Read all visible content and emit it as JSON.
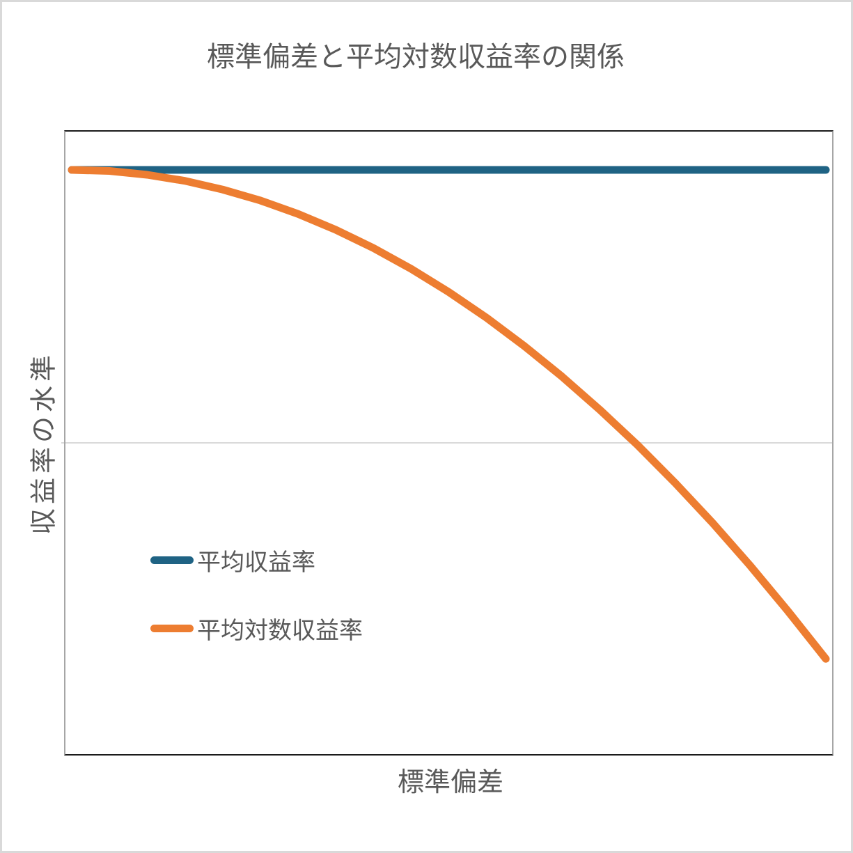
{
  "title": "標準偏差と平均対数収益率の関係",
  "axes": {
    "x_title": "標準偏差",
    "y_title": "収益率の水準"
  },
  "legend": {
    "items": [
      {
        "label": "平均収益率",
        "color": "#1F6384"
      },
      {
        "label": "平均対数収益率",
        "color": "#ED7D31"
      }
    ]
  },
  "colors": {
    "text": "#595959",
    "gridline": "#D9D9D9",
    "plot_border_horizontal": "#1A1A1A",
    "plot_border_vertical": "#A6A6A6",
    "series_mean_return": "#1F6384",
    "series_mean_log_return": "#ED7D31",
    "page_border": "#D9D9D9",
    "background": "#FFFFFF"
  },
  "chart_data": {
    "type": "line",
    "title": "標準偏差と平均対数収益率の関係",
    "xlabel": "標準偏差",
    "ylabel": "収益率の水準",
    "xlim": [
      0,
      1
    ],
    "ylim": [
      -1.14,
      1.14
    ],
    "x_tick_labels": [],
    "y_tick_labels": [],
    "gridlines_y": [
      0
    ],
    "grid": "single horizontal zero line",
    "legend_position": "inside-lower-left",
    "series": [
      {
        "id": "mean-return",
        "name": "平均収益率",
        "color": "#1F6384",
        "stroke_width": 11,
        "shape": "constant horizontal line",
        "x": [
          0,
          1
        ],
        "y": [
          1.0,
          1.0
        ]
      },
      {
        "id": "mean-log-return",
        "name": "平均対数収益率",
        "color": "#ED7D31",
        "stroke_width": 11,
        "shape": "downward parabola y = 1 - 1.789x^2",
        "x": [
          0,
          0.05,
          0.1,
          0.15,
          0.2,
          0.25,
          0.3,
          0.35,
          0.4,
          0.45,
          0.5,
          0.55,
          0.6,
          0.65,
          0.7,
          0.75,
          0.8,
          0.85,
          0.9,
          0.95,
          1.0
        ],
        "y": [
          1.0,
          0.996,
          0.982,
          0.96,
          0.928,
          0.888,
          0.839,
          0.781,
          0.714,
          0.638,
          0.553,
          0.459,
          0.356,
          0.244,
          0.123,
          -0.006,
          -0.145,
          -0.292,
          -0.449,
          -0.615,
          -0.789
        ]
      }
    ]
  }
}
